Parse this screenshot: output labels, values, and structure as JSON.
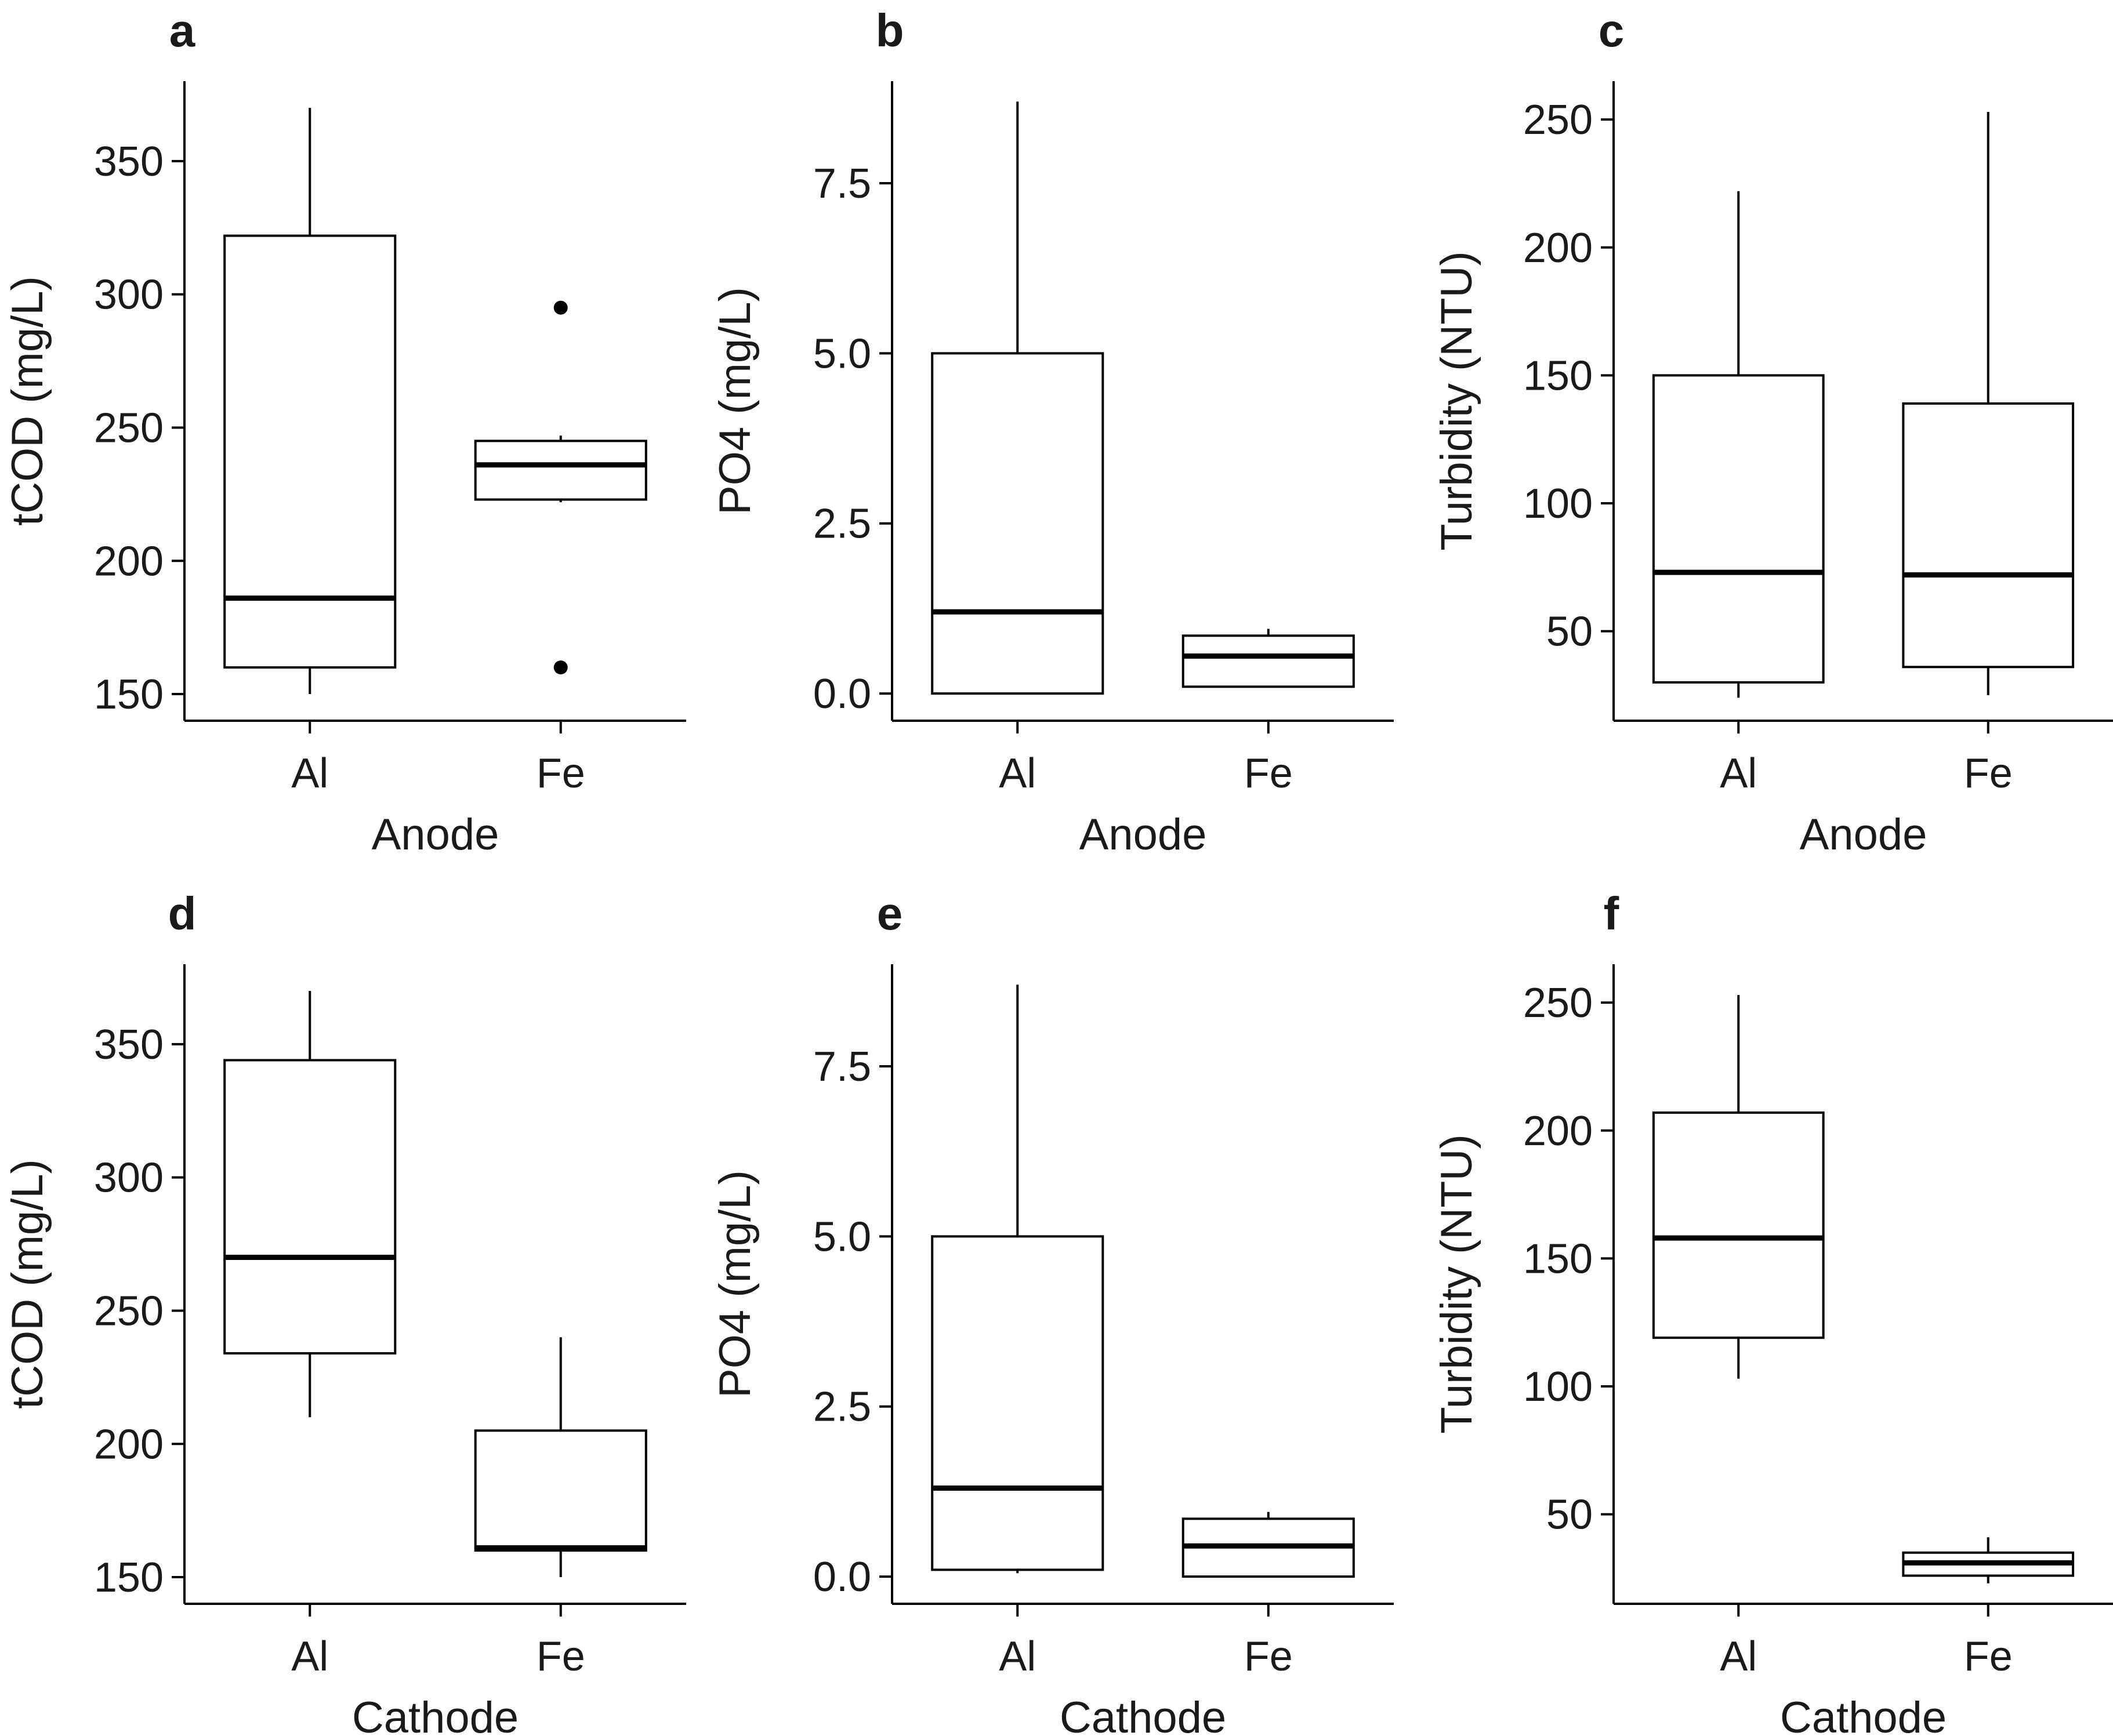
{
  "colors": {
    "stroke": "#000000",
    "text": "#1a1a1a",
    "background": "#ffffff"
  },
  "chart_data": [
    {
      "type": "box",
      "panel": "a",
      "xlabel": "Anode",
      "ylabel": "tCOD (mg/L)",
      "ylim": [
        140,
        380
      ],
      "yticks": [
        150,
        200,
        250,
        300,
        350
      ],
      "categories": [
        "Al",
        "Fe"
      ],
      "boxes": [
        {
          "category": "Al",
          "min": 150,
          "q1": 160,
          "median": 186,
          "q3": 322,
          "max": 370,
          "outliers": []
        },
        {
          "category": "Fe",
          "min": 222,
          "q1": 223,
          "median": 236,
          "q3": 245,
          "max": 247,
          "outliers": [
            295,
            160
          ]
        }
      ]
    },
    {
      "type": "box",
      "panel": "b",
      "xlabel": "Anode",
      "ylabel": "PO4 (mg/L)",
      "ylim": [
        -0.4,
        9.0
      ],
      "yticks": [
        0.0,
        2.5,
        5.0,
        7.5
      ],
      "yticklabels": [
        "0.0",
        "2.5",
        "5.0",
        "7.5"
      ],
      "categories": [
        "Al",
        "Fe"
      ],
      "boxes": [
        {
          "category": "Al",
          "min": 0.0,
          "q1": 0.0,
          "median": 1.2,
          "q3": 5.0,
          "max": 8.7,
          "outliers": []
        },
        {
          "category": "Fe",
          "min": 0.1,
          "q1": 0.1,
          "median": 0.55,
          "q3": 0.85,
          "max": 0.95,
          "outliers": []
        }
      ]
    },
    {
      "type": "box",
      "panel": "c",
      "xlabel": "Anode",
      "ylabel": "Turbidity (NTU)",
      "ylim": [
        15,
        265
      ],
      "yticks": [
        50,
        100,
        150,
        200,
        250
      ],
      "categories": [
        "Al",
        "Fe"
      ],
      "boxes": [
        {
          "category": "Al",
          "min": 24,
          "q1": 30,
          "median": 73,
          "q3": 150,
          "max": 222,
          "outliers": []
        },
        {
          "category": "Fe",
          "min": 25,
          "q1": 36,
          "median": 72,
          "q3": 139,
          "max": 253,
          "outliers": []
        }
      ]
    },
    {
      "type": "box",
      "panel": "d",
      "xlabel": "Cathode",
      "ylabel": "tCOD (mg/L)",
      "ylim": [
        140,
        380
      ],
      "yticks": [
        150,
        200,
        250,
        300,
        350
      ],
      "categories": [
        "Al",
        "Fe"
      ],
      "boxes": [
        {
          "category": "Al",
          "min": 210,
          "q1": 234,
          "median": 270,
          "q3": 344,
          "max": 370,
          "outliers": []
        },
        {
          "category": "Fe",
          "min": 150,
          "q1": 160,
          "median": 161,
          "q3": 205,
          "max": 240,
          "outliers": []
        }
      ]
    },
    {
      "type": "box",
      "panel": "e",
      "xlabel": "Cathode",
      "ylabel": "PO4 (mg/L)",
      "ylim": [
        -0.4,
        9.0
      ],
      "yticks": [
        0.0,
        2.5,
        5.0,
        7.5
      ],
      "yticklabels": [
        "0.0",
        "2.5",
        "5.0",
        "7.5"
      ],
      "categories": [
        "Al",
        "Fe"
      ],
      "boxes": [
        {
          "category": "Al",
          "min": 0.05,
          "q1": 0.1,
          "median": 1.3,
          "q3": 5.0,
          "max": 8.7,
          "outliers": []
        },
        {
          "category": "Fe",
          "min": 0.0,
          "q1": 0.0,
          "median": 0.45,
          "q3": 0.85,
          "max": 0.95,
          "outliers": []
        }
      ]
    },
    {
      "type": "box",
      "panel": "f",
      "xlabel": "Cathode",
      "ylabel": "Turbidity (NTU)",
      "ylim": [
        15,
        265
      ],
      "yticks": [
        50,
        100,
        150,
        200,
        250
      ],
      "categories": [
        "Al",
        "Fe"
      ],
      "boxes": [
        {
          "category": "Al",
          "min": 103,
          "q1": 119,
          "median": 158,
          "q3": 207,
          "max": 253,
          "outliers": []
        },
        {
          "category": "Fe",
          "min": 23,
          "q1": 26,
          "median": 31,
          "q3": 35,
          "max": 41,
          "outliers": []
        }
      ]
    }
  ]
}
